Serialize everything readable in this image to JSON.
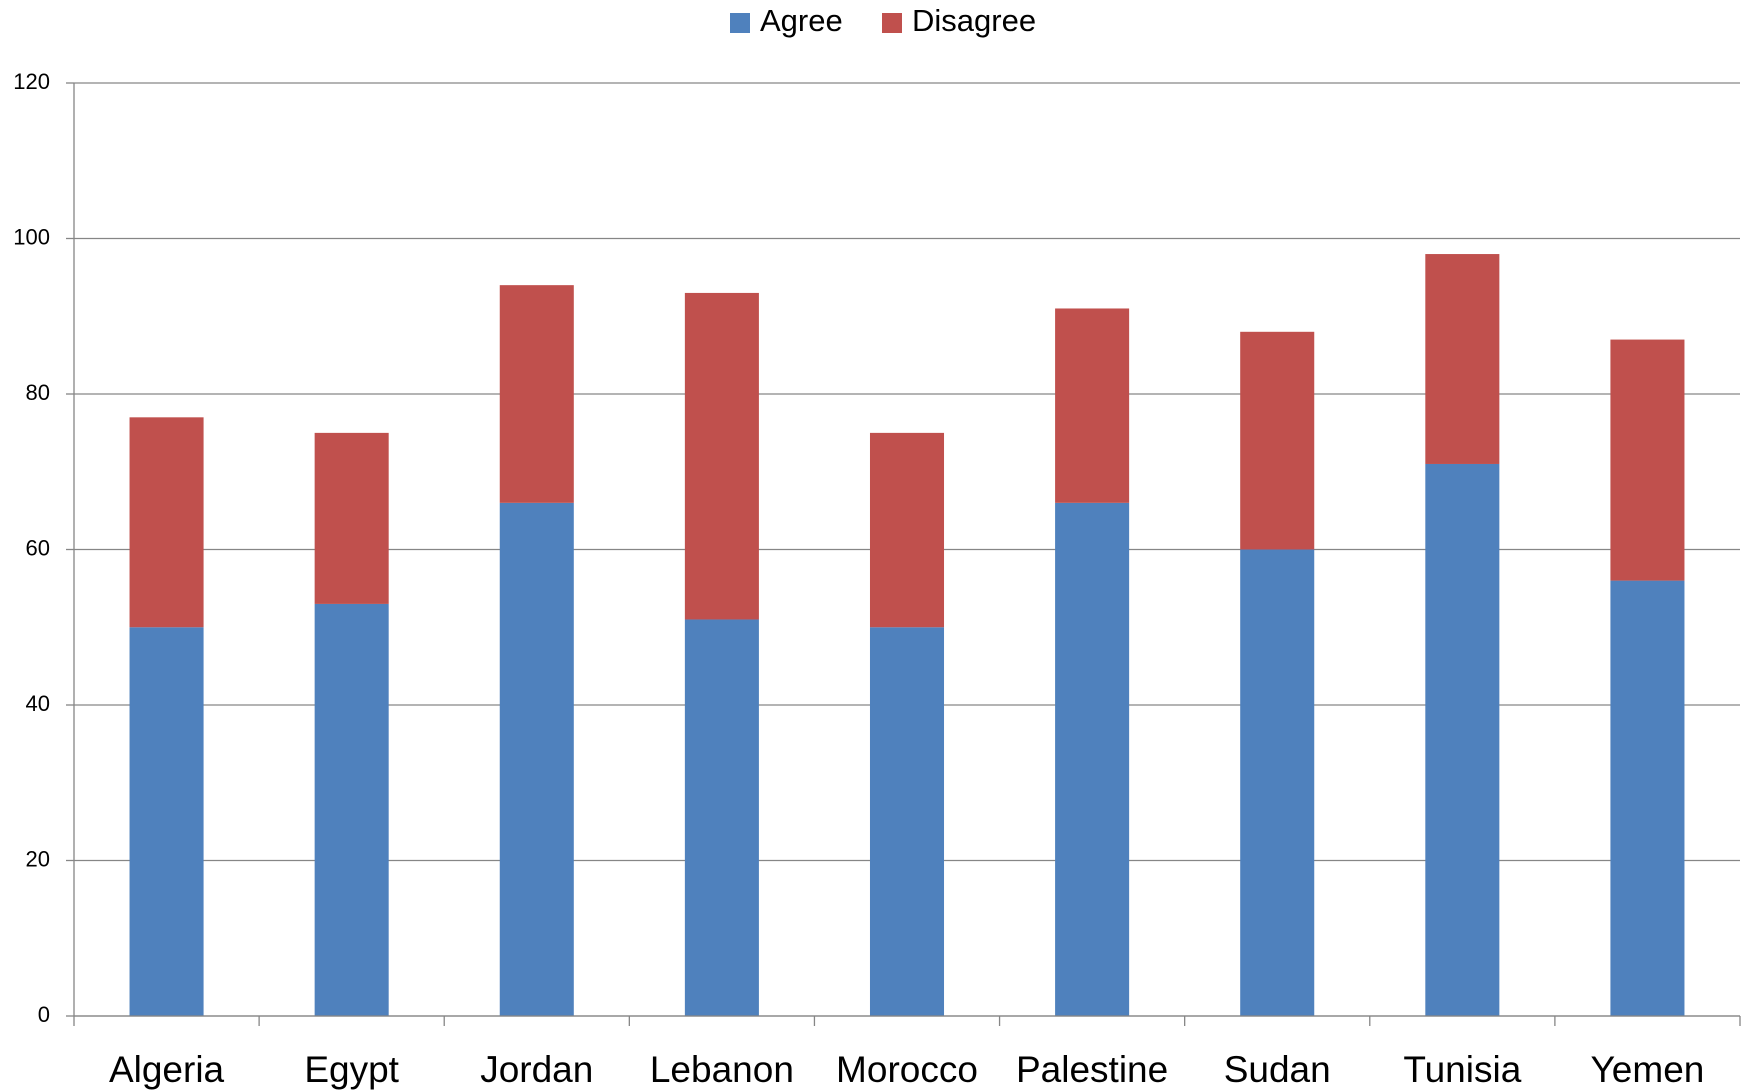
{
  "chart_data": {
    "type": "stacked_bar",
    "categories": [
      "Algeria",
      "Egypt",
      "Jordan",
      "Lebanon",
      "Morocco",
      "Palestine",
      "Sudan",
      "Tunisia",
      "Yemen"
    ],
    "series": [
      {
        "name": "Agree",
        "color": "#4f81bd",
        "values": [
          50,
          53,
          66,
          51,
          50,
          66,
          60,
          71,
          56
        ]
      },
      {
        "name": "Disagree",
        "color": "#c0504d",
        "values": [
          27,
          22,
          28,
          42,
          25,
          25,
          28,
          27,
          31
        ]
      }
    ],
    "ylim": [
      0,
      120
    ],
    "yticks": [
      0,
      20,
      40,
      60,
      80,
      100,
      120
    ],
    "grid": true,
    "legend": "top"
  }
}
